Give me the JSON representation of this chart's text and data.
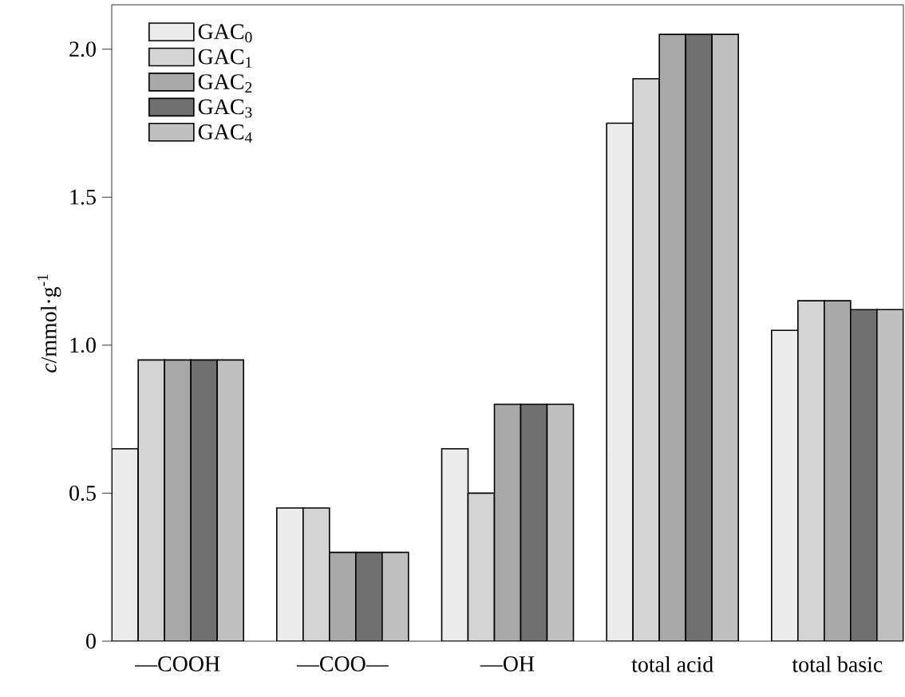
{
  "chart_data": {
    "type": "bar",
    "ylabel": "*c*/mmol·g$^{-1}$",
    "categories": [
      "—COOH",
      "—COO—",
      "—OH",
      "total acid",
      "total basic"
    ],
    "series": [
      {
        "name": "GAC$_{0}$",
        "color": "#ececec",
        "values": [
          0.65,
          0.45,
          0.65,
          1.75,
          1.05
        ]
      },
      {
        "name": "GAC$_{1}$",
        "color": "#d4d4d4",
        "values": [
          0.95,
          0.45,
          0.5,
          1.9,
          1.15
        ]
      },
      {
        "name": "GAC$_{2}$",
        "color": "#a8a8a8",
        "values": [
          0.95,
          0.3,
          0.8,
          2.05,
          1.15
        ]
      },
      {
        "name": "GAC$_{3}$",
        "color": "#707070",
        "values": [
          0.95,
          0.3,
          0.8,
          2.05,
          1.12
        ]
      },
      {
        "name": "GAC$_{4}$",
        "color": "#c0c0c0",
        "values": [
          0.95,
          0.3,
          0.8,
          2.05,
          1.12
        ]
      }
    ],
    "ylim": [
      0,
      2.15
    ],
    "yticks": [
      0,
      0.5,
      {
        "value": 1.0,
        "label": "1.0"
      },
      1.5,
      {
        "value": 2.0,
        "label": "2.0"
      }
    ],
    "grid": false,
    "legend": "top left"
  }
}
